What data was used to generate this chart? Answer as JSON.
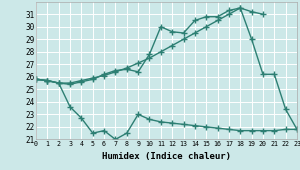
{
  "line1_x": [
    0,
    1,
    2,
    3,
    4,
    5,
    6,
    7,
    8,
    9,
    10,
    11,
    12,
    13,
    14,
    15,
    16,
    17,
    18,
    19,
    20
  ],
  "line1_y": [
    25.8,
    25.7,
    25.5,
    25.5,
    25.7,
    25.9,
    26.1,
    26.4,
    26.7,
    27.1,
    27.5,
    28.0,
    28.5,
    29.0,
    29.5,
    30.0,
    30.5,
    31.0,
    31.5,
    31.2,
    31.0
  ],
  "line2_x": [
    0,
    1,
    2,
    3,
    4,
    5,
    6,
    7,
    8,
    9,
    10,
    11,
    12,
    13,
    14,
    15,
    16,
    17,
    18,
    19,
    20,
    21,
    22,
    23
  ],
  "line2_y": [
    25.8,
    25.7,
    25.5,
    25.4,
    25.6,
    25.8,
    26.2,
    26.5,
    26.6,
    26.4,
    27.8,
    30.0,
    29.6,
    29.5,
    30.5,
    30.8,
    30.8,
    31.3,
    31.5,
    29.0,
    26.2,
    26.2,
    23.4,
    21.8
  ],
  "line3_x": [
    0,
    1,
    2,
    3,
    4,
    5,
    6,
    7,
    8,
    9,
    10,
    11,
    12,
    13,
    14,
    15,
    16,
    17,
    18,
    19,
    20,
    21,
    22,
    23
  ],
  "line3_y": [
    25.8,
    25.7,
    25.5,
    23.6,
    22.7,
    21.5,
    21.7,
    21.0,
    21.5,
    23.0,
    22.6,
    22.4,
    22.3,
    22.2,
    22.1,
    22.0,
    21.9,
    21.8,
    21.7,
    21.7,
    21.7,
    21.7,
    21.8,
    21.8
  ],
  "line_color": "#2d7f73",
  "bg_color": "#cce8e8",
  "grid_color": "#ffffff",
  "xlabel": "Humidex (Indice chaleur)",
  "xlim": [
    0,
    23
  ],
  "ylim": [
    21,
    32
  ],
  "yticks": [
    21,
    22,
    23,
    24,
    25,
    26,
    27,
    28,
    29,
    30,
    31
  ],
  "xticks": [
    0,
    1,
    2,
    3,
    4,
    5,
    6,
    7,
    8,
    9,
    10,
    11,
    12,
    13,
    14,
    15,
    16,
    17,
    18,
    19,
    20,
    21,
    22,
    23
  ],
  "marker": "+",
  "markersize": 4,
  "linewidth": 1.0
}
